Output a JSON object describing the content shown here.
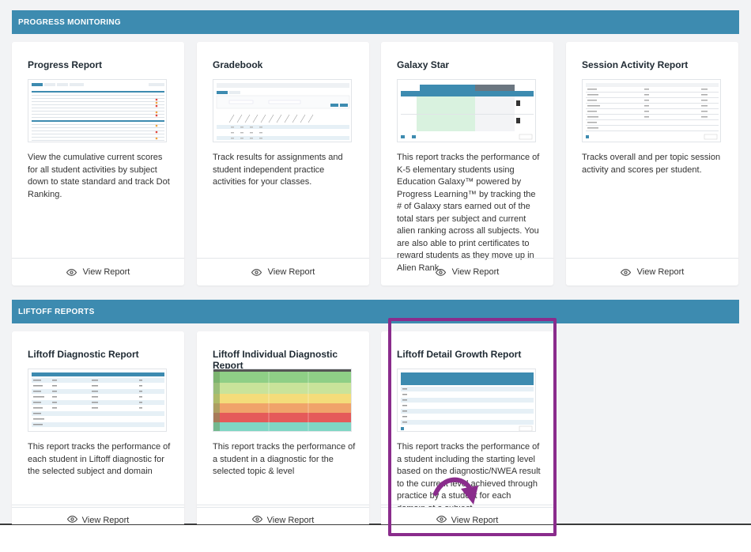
{
  "sections": [
    {
      "title": "PROGRESS MONITORING",
      "cards": [
        {
          "title": "Progress Report",
          "desc": "View the cumulative current scores for all student activities by subject down to state standard and track Dot Ranking.",
          "action": "View Report"
        },
        {
          "title": "Gradebook",
          "desc": "Track results for assignments and student independent practice activities for your classes.",
          "action": "View Report"
        },
        {
          "title": "Galaxy Star",
          "desc": "This report tracks the performance of K-5 elementary students using Education Galaxy™ powered by Progress Learning™ by tracking the # of Galaxy stars earned out of the total stars per subject and current alien ranking across all subjects. You are also able to print certificates to reward students as they move up in Alien Rank.",
          "action": "View Report"
        },
        {
          "title": "Session Activity Report",
          "desc": "Tracks overall and per topic session activity and scores per student.",
          "action": "View Report"
        }
      ]
    },
    {
      "title": "LIFTOFF REPORTS",
      "cards": [
        {
          "title": "Liftoff Diagnostic Report",
          "desc": "This report tracks the performance of each student in Liftoff diagnostic for the selected subject and domain",
          "action": "View Report"
        },
        {
          "title": "Liftoff Individual Diagnostic Report",
          "desc": "This report tracks the performance of a student in a diagnostic for the selected topic & level",
          "action": "View Report"
        },
        {
          "title": "Liftoff Detail Growth Report",
          "desc": "This report tracks the performance of a student including the starting level based on the diagnostic/NWEA result to the current level achieved through practice by a student for each domain of a subject",
          "action": "View Report"
        }
      ]
    }
  ],
  "colors": {
    "section_bar": "#3d8bb0",
    "highlight": "#8a2c8c",
    "page_bg": "#f2f3f5"
  },
  "icons": {
    "view": "eye-icon",
    "annotation": "curved-arrow-icon"
  }
}
